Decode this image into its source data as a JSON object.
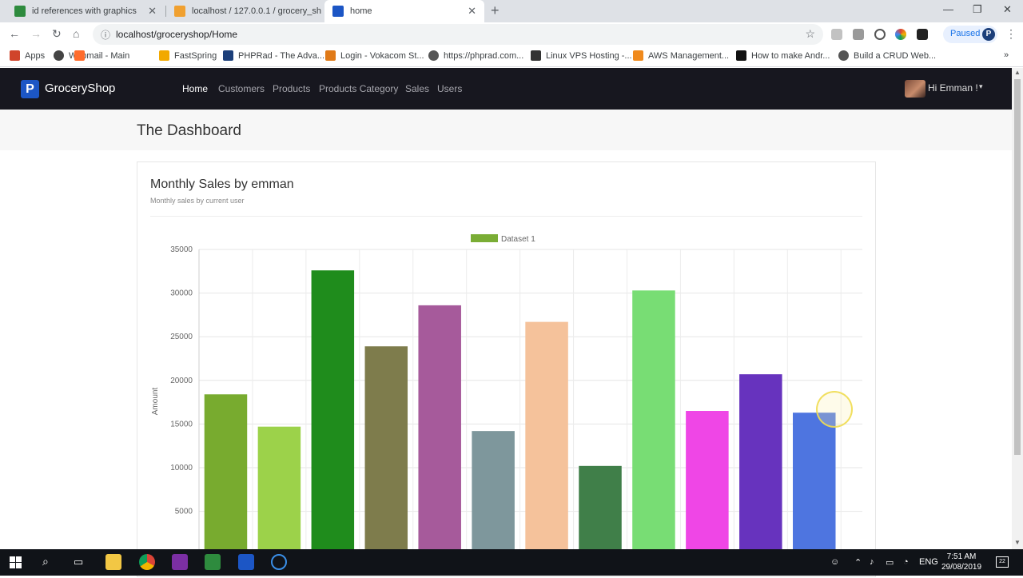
{
  "browser": {
    "tabs": [
      {
        "title": "id references with graphics",
        "favicon": "spreadsheet-icon",
        "color": "#2e8b3e"
      },
      {
        "title": "localhost / 127.0.0.1 / grocery_sh",
        "favicon": "phpmyadmin-icon",
        "color": "#f0a030"
      },
      {
        "title": "home",
        "favicon": "phprad-icon",
        "color": "#1c56c5"
      }
    ],
    "url": "localhost/groceryshop/Home",
    "profile_status": "Paused",
    "profile_initial": "P",
    "bookmarks": [
      {
        "label": "Apps",
        "icon": "apps-grid-icon",
        "color": "#d0442b"
      },
      {
        "label": "Webmail - Main",
        "icon": "globe-icon",
        "color": "#444444"
      },
      {
        "label": "",
        "icon": "cpanel-icon",
        "color": "#ff6c2c"
      },
      {
        "label": "FastSpring",
        "icon": "fastspring-icon",
        "color": "#f2a900"
      },
      {
        "label": "PHPRad - The Adva...",
        "icon": "phprad-icon",
        "color": "#1c3f7a"
      },
      {
        "label": "Login - Vokacom St...",
        "icon": "vokacom-icon",
        "color": "#e07a18"
      },
      {
        "label": "https://phprad.com...",
        "icon": "globe-icon",
        "color": "#555555"
      },
      {
        "label": "Linux VPS Hosting -...",
        "icon": "vps-icon",
        "color": "#333333"
      },
      {
        "label": "AWS Management...",
        "icon": "aws-icon",
        "color": "#f08a1c"
      },
      {
        "label": "How to make Andr...",
        "icon": "medium-icon",
        "color": "#111111"
      },
      {
        "label": "Build a CRUD Web...",
        "icon": "globe-icon",
        "color": "#555555"
      }
    ],
    "bookmarks_more": "»"
  },
  "app": {
    "brand_initial": "P",
    "brand_name": "GroceryShop",
    "nav": [
      "Home",
      "Customers",
      "Products",
      "Products Category",
      "Sales",
      "Users"
    ],
    "active_nav": "Home",
    "user_greeting": "Hi Emman !",
    "caret": "▾"
  },
  "page": {
    "title": "The Dashboard",
    "card": {
      "title": "Monthly Sales by emman",
      "subtitle": "Monthly sales by current user"
    }
  },
  "chart_data": {
    "type": "bar",
    "series": [
      {
        "name": "Dataset 1",
        "legend_color": "#7aad35",
        "values": [
          18400,
          14700,
          32600,
          23900,
          28600,
          14200,
          26700,
          10200,
          30300,
          16500,
          20700,
          16300
        ],
        "colors": [
          "#78ab2f",
          "#9cd24a",
          "#1f8c1c",
          "#7e7c4c",
          "#a65a9b",
          "#7e979c",
          "#f5c29b",
          "#407f49",
          "#78dd74",
          "#ef46e6",
          "#6733be",
          "#4e75e0"
        ]
      }
    ],
    "ylabel": "Amount",
    "xlabel": "",
    "ylim": [
      0,
      35000
    ],
    "yticks": [
      5000,
      10000,
      15000,
      20000,
      25000,
      30000,
      35000
    ],
    "grid": true,
    "legend_position": "top"
  },
  "taskbar": {
    "apps": [
      {
        "icon": "file-explorer-icon",
        "color": "#f2c744"
      },
      {
        "icon": "chrome-icon",
        "color": "#db4437"
      },
      {
        "icon": "onenote-icon",
        "color": "#7b2fa3"
      },
      {
        "icon": "sheets-icon",
        "color": "#2e8b3e"
      },
      {
        "icon": "phprad-icon",
        "color": "#1c56c5"
      },
      {
        "icon": "cortana-icon",
        "color": "#3a8ee6"
      }
    ],
    "language": "ENG",
    "time": "7:51 AM",
    "date": "29/08/2019",
    "notifications": "22"
  }
}
